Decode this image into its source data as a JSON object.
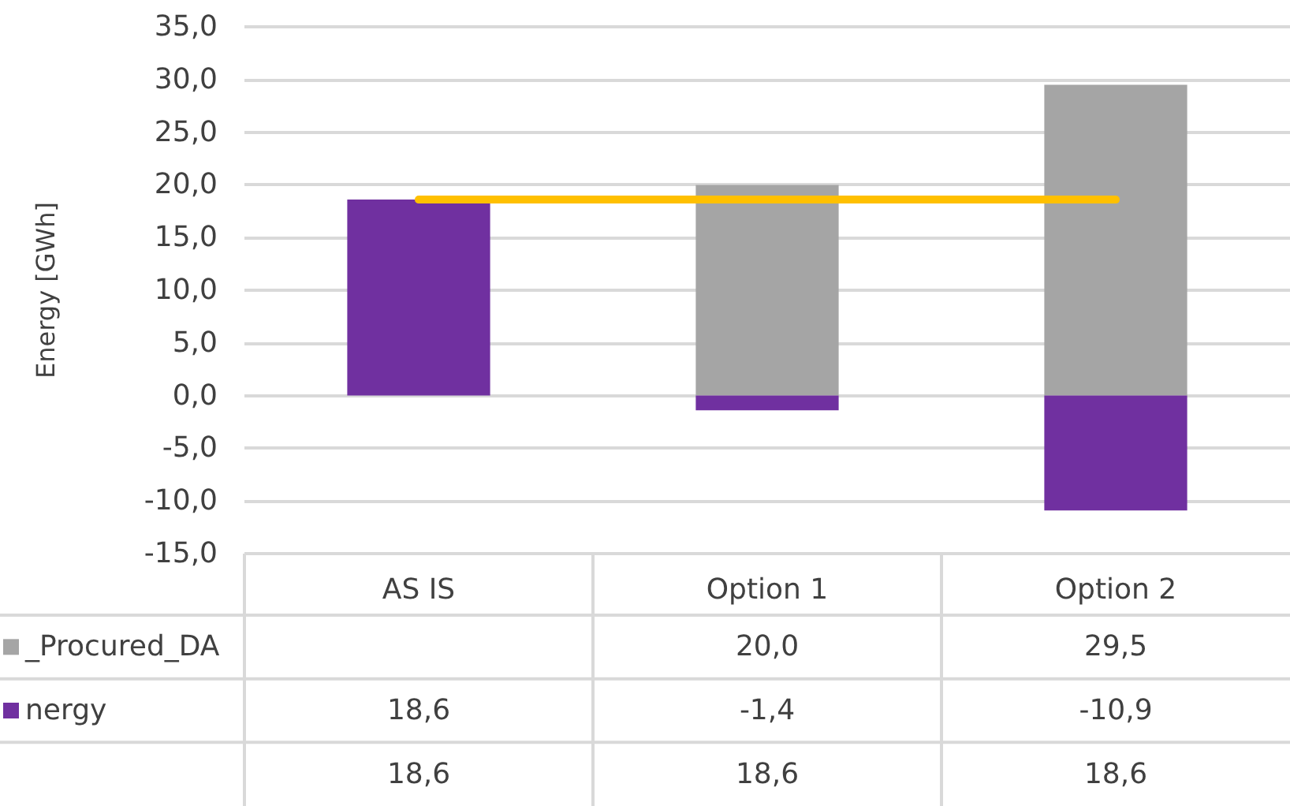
{
  "chart_data": {
    "type": "bar",
    "stacked": true,
    "ylabel": "Energy [GWh]",
    "categories": [
      "AS IS",
      "Option 1",
      "Option 2"
    ],
    "series": [
      {
        "name": "_Procured_DA",
        "color": "#a5a5a5",
        "values": [
          null,
          20.0,
          29.5
        ],
        "value_labels": [
          null,
          "20,0",
          "29,5"
        ]
      },
      {
        "name": "nergy",
        "color": "#7030a0",
        "values": [
          18.6,
          -1.4,
          -10.9
        ],
        "value_labels": [
          "18,6",
          "-1,4",
          "-10,9"
        ]
      },
      {
        "type": "line",
        "color": "#ffc000",
        "values": [
          18.6,
          18.6,
          18.6
        ],
        "value_labels": [
          "18,6",
          "18,6",
          "18,6"
        ]
      }
    ],
    "ylim": [
      -15,
      35
    ],
    "yticks": [
      {
        "value": -15,
        "label": "-15,0"
      },
      {
        "value": -10,
        "label": "-10,0"
      },
      {
        "value": -5,
        "label": "-5,0"
      },
      {
        "value": 0,
        "label": "0,0"
      },
      {
        "value": 5,
        "label": "5,0"
      },
      {
        "value": 10,
        "label": "10,0"
      },
      {
        "value": 15,
        "label": "15,0"
      },
      {
        "value": 20,
        "label": "20,0"
      },
      {
        "value": 25,
        "label": "25,0"
      },
      {
        "value": 30,
        "label": "30,0"
      },
      {
        "value": 35,
        "label": "35,0"
      }
    ],
    "grid": true,
    "legend": "bottom left",
    "marker": "none"
  }
}
